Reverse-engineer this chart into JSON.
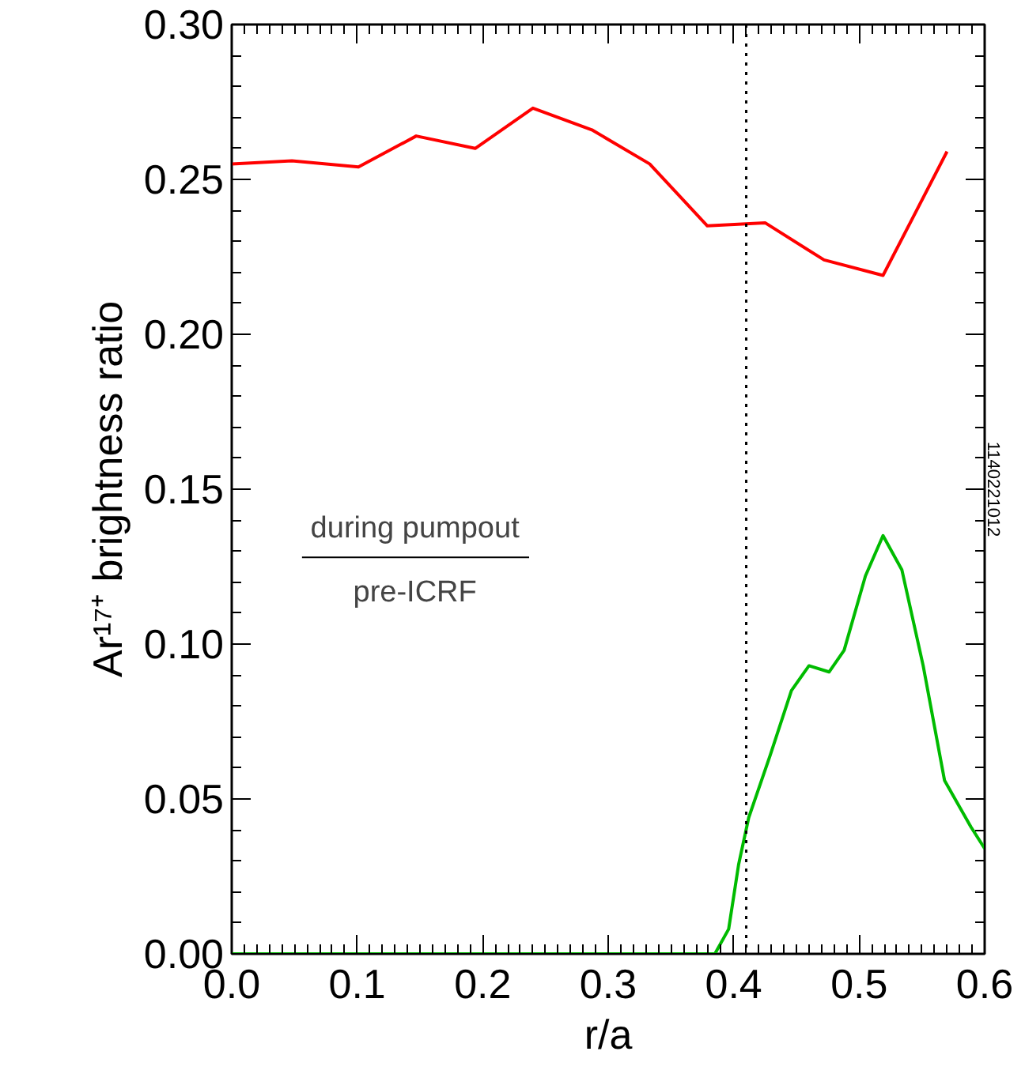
{
  "chart_data": {
    "type": "line",
    "xlabel": "r/a",
    "ylabel": "Ar¹⁷⁺ brightness ratio",
    "xlim": [
      0.0,
      0.6
    ],
    "ylim": [
      0.0,
      0.3
    ],
    "xticks": [
      {
        "value": 0.0,
        "label": "0.0"
      },
      0.1,
      0.2,
      0.3,
      0.4,
      0.5,
      {
        "value": 0.6,
        "label": "0.6"
      }
    ],
    "yticks": [
      {
        "value": 0.0,
        "label": "0.00"
      },
      0.05,
      {
        "value": 0.1,
        "label": "0.10"
      },
      0.15,
      {
        "value": 0.2,
        "label": "0.20"
      },
      0.25,
      {
        "value": 0.3,
        "label": "0.30"
      }
    ],
    "grid": false,
    "series": [
      {
        "color": "#ff0000",
        "x": [
          0.0,
          0.048,
          0.101,
          0.147,
          0.194,
          0.24,
          0.287,
          0.333,
          0.379,
          0.425,
          0.472,
          0.519,
          0.57
        ],
        "values": [
          0.255,
          0.256,
          0.254,
          0.264,
          0.26,
          0.273,
          0.266,
          0.255,
          0.235,
          0.236,
          0.224,
          0.219,
          0.259
        ]
      },
      {
        "color": "#00bb00",
        "x": [
          0.0,
          0.385,
          0.396,
          0.404,
          0.412,
          0.429,
          0.446,
          0.46,
          0.476,
          0.488,
          0.505,
          0.519,
          0.534,
          0.551,
          0.568,
          0.589,
          0.6
        ],
        "values": [
          0.0,
          0.0,
          0.008,
          0.029,
          0.044,
          0.064,
          0.085,
          0.093,
          0.091,
          0.098,
          0.122,
          0.135,
          0.124,
          0.093,
          0.056,
          0.041,
          0.034
        ]
      }
    ],
    "ref_lines": [
      {
        "axis": "x",
        "value": 0.41,
        "color": "#000000",
        "line_style": "dotted"
      }
    ],
    "annotations": [
      "during pumpout",
      "pre-ICRF",
      "1140221012"
    ]
  }
}
